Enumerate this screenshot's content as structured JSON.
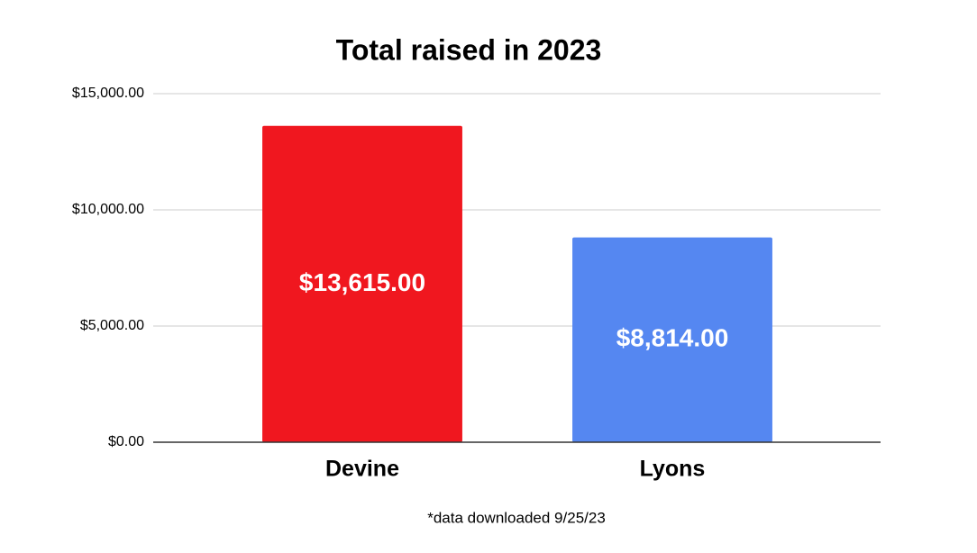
{
  "chart_data": {
    "type": "bar",
    "title": "Total raised in 2023",
    "categories": [
      "Devine",
      "Lyons"
    ],
    "values": [
      13615,
      8814
    ],
    "value_labels": [
      "$13,615.00",
      "$8,814.00"
    ],
    "colors": [
      "#f0171f",
      "#5587f1"
    ],
    "ylim": [
      0,
      15000
    ],
    "yticks": [
      {
        "value": 0,
        "label": "$0.00"
      },
      {
        "value": 5000,
        "label": "$5,000.00"
      },
      {
        "value": 10000,
        "label": "$10,000.00"
      },
      {
        "value": 15000,
        "label": "$15,000.00"
      }
    ],
    "grid": true,
    "annotation": "*data downloaded 9/25/23"
  }
}
